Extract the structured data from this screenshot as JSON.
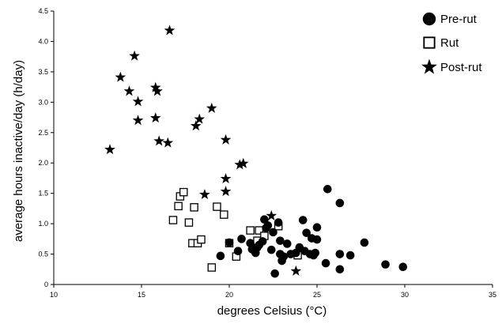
{
  "chart_data": {
    "type": "scatter",
    "title": "",
    "xlabel": "degrees Celsius (°C)",
    "ylabel": "average hours inactive/day (h/day)",
    "xlim": [
      10,
      35
    ],
    "ylim": [
      0,
      4.5
    ],
    "xticks": [
      10,
      15,
      20,
      25,
      30,
      35
    ],
    "yticks": [
      0,
      0.5,
      1.0,
      1.5,
      2.0,
      2.5,
      3.0,
      3.5,
      4.0,
      4.5
    ],
    "xtick_labels": [
      "10",
      "15",
      "20",
      "25",
      "30",
      "35"
    ],
    "ytick_labels": [
      "0",
      "0.5",
      "1.0",
      "1.5",
      "2.0",
      "2.5",
      "3.0",
      "3.5",
      "4.0",
      "4.5"
    ],
    "grid": false,
    "legend_position": "top-right",
    "series": [
      {
        "name": "Pre-rut",
        "marker": "circle",
        "color": "#000000",
        "points": [
          [
            19.5,
            0.47
          ],
          [
            20.0,
            0.69
          ],
          [
            20.5,
            0.55
          ],
          [
            20.7,
            0.75
          ],
          [
            21.2,
            0.68
          ],
          [
            21.3,
            0.58
          ],
          [
            21.5,
            0.52
          ],
          [
            21.6,
            0.61
          ],
          [
            21.7,
            0.65
          ],
          [
            21.9,
            0.71
          ],
          [
            22.0,
            1.07
          ],
          [
            22.1,
            0.93
          ],
          [
            22.2,
            0.97
          ],
          [
            22.4,
            0.57
          ],
          [
            22.5,
            0.86
          ],
          [
            22.6,
            0.18
          ],
          [
            22.8,
            1.02
          ],
          [
            22.9,
            0.72
          ],
          [
            22.9,
            0.5
          ],
          [
            23.0,
            0.39
          ],
          [
            23.1,
            0.46
          ],
          [
            23.3,
            0.67
          ],
          [
            23.5,
            0.5
          ],
          [
            23.8,
            0.52
          ],
          [
            24.0,
            0.61
          ],
          [
            24.2,
            1.06
          ],
          [
            24.3,
            0.55
          ],
          [
            24.4,
            0.85
          ],
          [
            24.6,
            0.5
          ],
          [
            24.7,
            0.76
          ],
          [
            24.8,
            0.48
          ],
          [
            24.9,
            0.52
          ],
          [
            25.0,
            0.74
          ],
          [
            25.0,
            0.94
          ],
          [
            25.5,
            0.35
          ],
          [
            25.6,
            1.57
          ],
          [
            26.3,
            1.34
          ],
          [
            26.3,
            0.5
          ],
          [
            26.3,
            0.25
          ],
          [
            26.9,
            0.48
          ],
          [
            27.7,
            0.69
          ],
          [
            28.9,
            0.33
          ],
          [
            29.9,
            0.29
          ]
        ]
      },
      {
        "name": "Rut",
        "marker": "open-square",
        "color": "#000000",
        "points": [
          [
            16.8,
            1.06
          ],
          [
            17.1,
            1.29
          ],
          [
            17.2,
            1.45
          ],
          [
            17.4,
            1.52
          ],
          [
            17.7,
            1.02
          ],
          [
            17.9,
            0.68
          ],
          [
            18.0,
            1.27
          ],
          [
            18.2,
            0.68
          ],
          [
            18.4,
            0.74
          ],
          [
            19.0,
            0.28
          ],
          [
            19.3,
            1.28
          ],
          [
            19.7,
            1.15
          ],
          [
            20.0,
            0.68
          ],
          [
            20.4,
            0.46
          ],
          [
            21.2,
            0.89
          ],
          [
            21.6,
            0.72
          ],
          [
            21.7,
            0.89
          ],
          [
            22.0,
            0.8
          ],
          [
            22.8,
            0.96
          ],
          [
            23.9,
            0.48
          ]
        ]
      },
      {
        "name": "Post-rut",
        "marker": "filled-star",
        "color": "#000000",
        "points": [
          [
            13.2,
            2.22
          ],
          [
            13.8,
            3.41
          ],
          [
            14.3,
            3.18
          ],
          [
            14.6,
            3.76
          ],
          [
            14.8,
            2.7
          ],
          [
            14.8,
            3.01
          ],
          [
            15.8,
            3.24
          ],
          [
            15.8,
            2.74
          ],
          [
            15.9,
            3.18
          ],
          [
            16.0,
            2.36
          ],
          [
            16.5,
            2.33
          ],
          [
            16.6,
            4.18
          ],
          [
            18.1,
            2.61
          ],
          [
            18.3,
            2.72
          ],
          [
            18.6,
            1.48
          ],
          [
            19.0,
            2.9
          ],
          [
            19.8,
            2.38
          ],
          [
            19.8,
            1.53
          ],
          [
            19.8,
            1.74
          ],
          [
            20.6,
            1.97
          ],
          [
            20.8,
            1.99
          ],
          [
            22.4,
            1.13
          ],
          [
            23.8,
            0.22
          ]
        ]
      }
    ]
  }
}
